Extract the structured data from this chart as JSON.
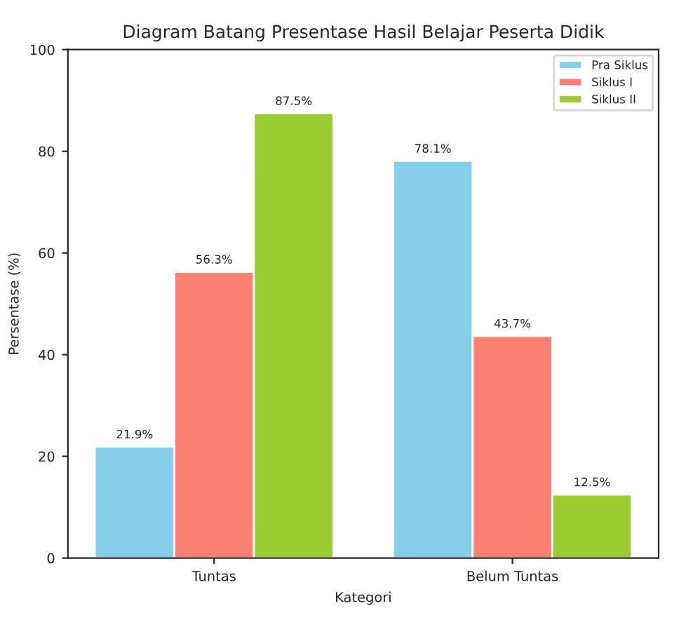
{
  "chart_data": {
    "type": "bar",
    "title": "Diagram Batang Presentase Hasil Belajar Peserta Didik",
    "xlabel": "Kategori",
    "ylabel": "Persentase (%)",
    "categories": [
      "Tuntas",
      "Belum Tuntas"
    ],
    "series": [
      {
        "name": "Pra Siklus",
        "color": "#87ceeb",
        "values": [
          21.9,
          78.1
        ],
        "value_labels": [
          "21.9%",
          "78.1%"
        ]
      },
      {
        "name": "Siklus I",
        "color": "#fa8072",
        "values": [
          56.3,
          43.7
        ],
        "value_labels": [
          "56.3%",
          "43.7%"
        ]
      },
      {
        "name": "Siklus II",
        "color": "#9acd32",
        "values": [
          87.5,
          12.5
        ],
        "value_labels": [
          "87.5%",
          "12.5%"
        ]
      }
    ],
    "ylim": [
      0,
      100
    ],
    "yticks": [
      0,
      20,
      40,
      60,
      80,
      100
    ],
    "legend": "top right",
    "grid": false
  }
}
